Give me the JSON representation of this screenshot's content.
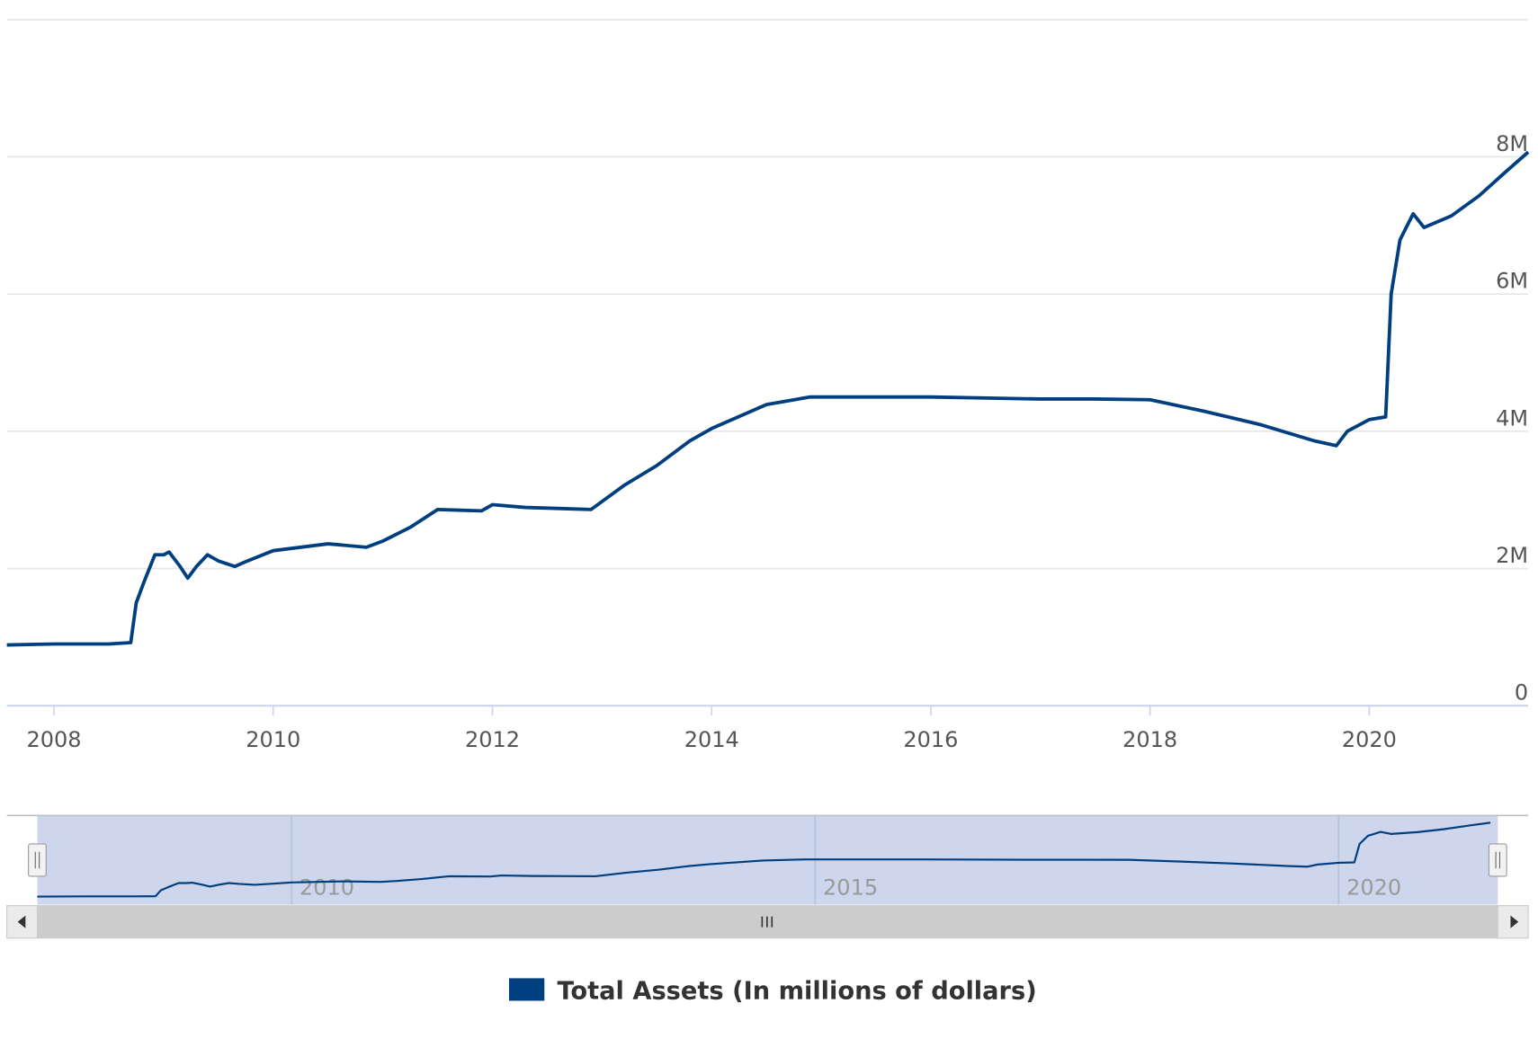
{
  "chart_data": {
    "type": "line",
    "legend": "bottom",
    "grid": true,
    "x": [
      2007.57,
      2008.0,
      2008.5,
      2008.7,
      2008.75,
      2008.82,
      2008.92,
      2009.0,
      2009.05,
      2009.15,
      2009.22,
      2009.3,
      2009.4,
      2009.5,
      2009.65,
      2009.75,
      2010.0,
      2010.5,
      2010.85,
      2011.0,
      2011.25,
      2011.5,
      2011.9,
      2012.0,
      2012.3,
      2012.9,
      2013.2,
      2013.5,
      2013.8,
      2014.0,
      2014.5,
      2014.9,
      2016.0,
      2017.0,
      2017.5,
      2018.0,
      2018.5,
      2019.0,
      2019.5,
      2019.7,
      2019.8,
      2020.0,
      2020.15,
      2020.2,
      2020.28,
      2020.4,
      2020.5,
      2020.75,
      2021.0,
      2021.25,
      2021.45
    ],
    "series": [
      {
        "name": "Total Assets (In millions of dollars)",
        "color": "#003f7f",
        "values": [
          886000,
          900000,
          900000,
          920000,
          1500000,
          1800000,
          2200000,
          2200000,
          2240000,
          2030000,
          1860000,
          2030000,
          2200000,
          2110000,
          2030000,
          2100000,
          2260000,
          2360000,
          2310000,
          2400000,
          2600000,
          2860000,
          2840000,
          2930000,
          2890000,
          2860000,
          3210000,
          3500000,
          3860000,
          4040000,
          4390000,
          4500000,
          4500000,
          4470000,
          4470000,
          4460000,
          4290000,
          4100000,
          3860000,
          3790000,
          4000000,
          4170000,
          4210000,
          6000000,
          6790000,
          7170000,
          6970000,
          7140000,
          7430000,
          7790000,
          8070000
        ]
      }
    ],
    "xlim": [
      2007.57,
      2021.45
    ],
    "xticks": [
      2008,
      2010,
      2012,
      2014,
      2016,
      2018,
      2020
    ],
    "ylim": [
      0,
      10000000
    ],
    "yticks": [
      0,
      {
        "value": 2000000,
        "label": "2M"
      },
      {
        "value": 4000000,
        "label": "4M"
      },
      {
        "value": 6000000,
        "label": "6M"
      },
      {
        "value": 8000000,
        "label": "8M"
      }
    ],
    "navigator": {
      "xlim": [
        2007.57,
        2021.52
      ],
      "xticks": [
        2010,
        2015,
        2020
      ]
    }
  }
}
